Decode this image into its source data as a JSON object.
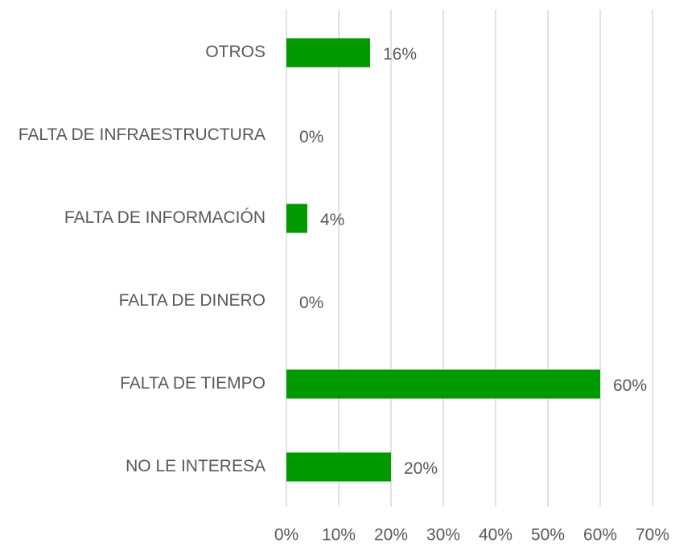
{
  "chart_data": {
    "type": "bar",
    "orientation": "horizontal",
    "categories": [
      "OTROS",
      "FALTA DE INFRAESTRUCTURA",
      "FALTA DE INFORMACIÓN",
      "FALTA DE DINERO",
      "FALTA DE TIEMPO",
      "NO LE INTERESA"
    ],
    "values": [
      16,
      0,
      4,
      0,
      60,
      20
    ],
    "value_labels": [
      "16%",
      "0%",
      "4%",
      "0%",
      "60%",
      "20%"
    ],
    "color": "#009900",
    "xlim": [
      0,
      70
    ],
    "xticks": [
      {
        "value": 0,
        "label": "0%"
      },
      {
        "value": 10,
        "label": "10%"
      },
      {
        "value": 20,
        "label": "20%"
      },
      {
        "value": 30,
        "label": "30%"
      },
      {
        "value": 40,
        "label": "40%"
      },
      {
        "value": 50,
        "label": "50%"
      },
      {
        "value": 60,
        "label": "60%"
      },
      {
        "value": 70,
        "label": "70%"
      }
    ],
    "grid": true
  }
}
